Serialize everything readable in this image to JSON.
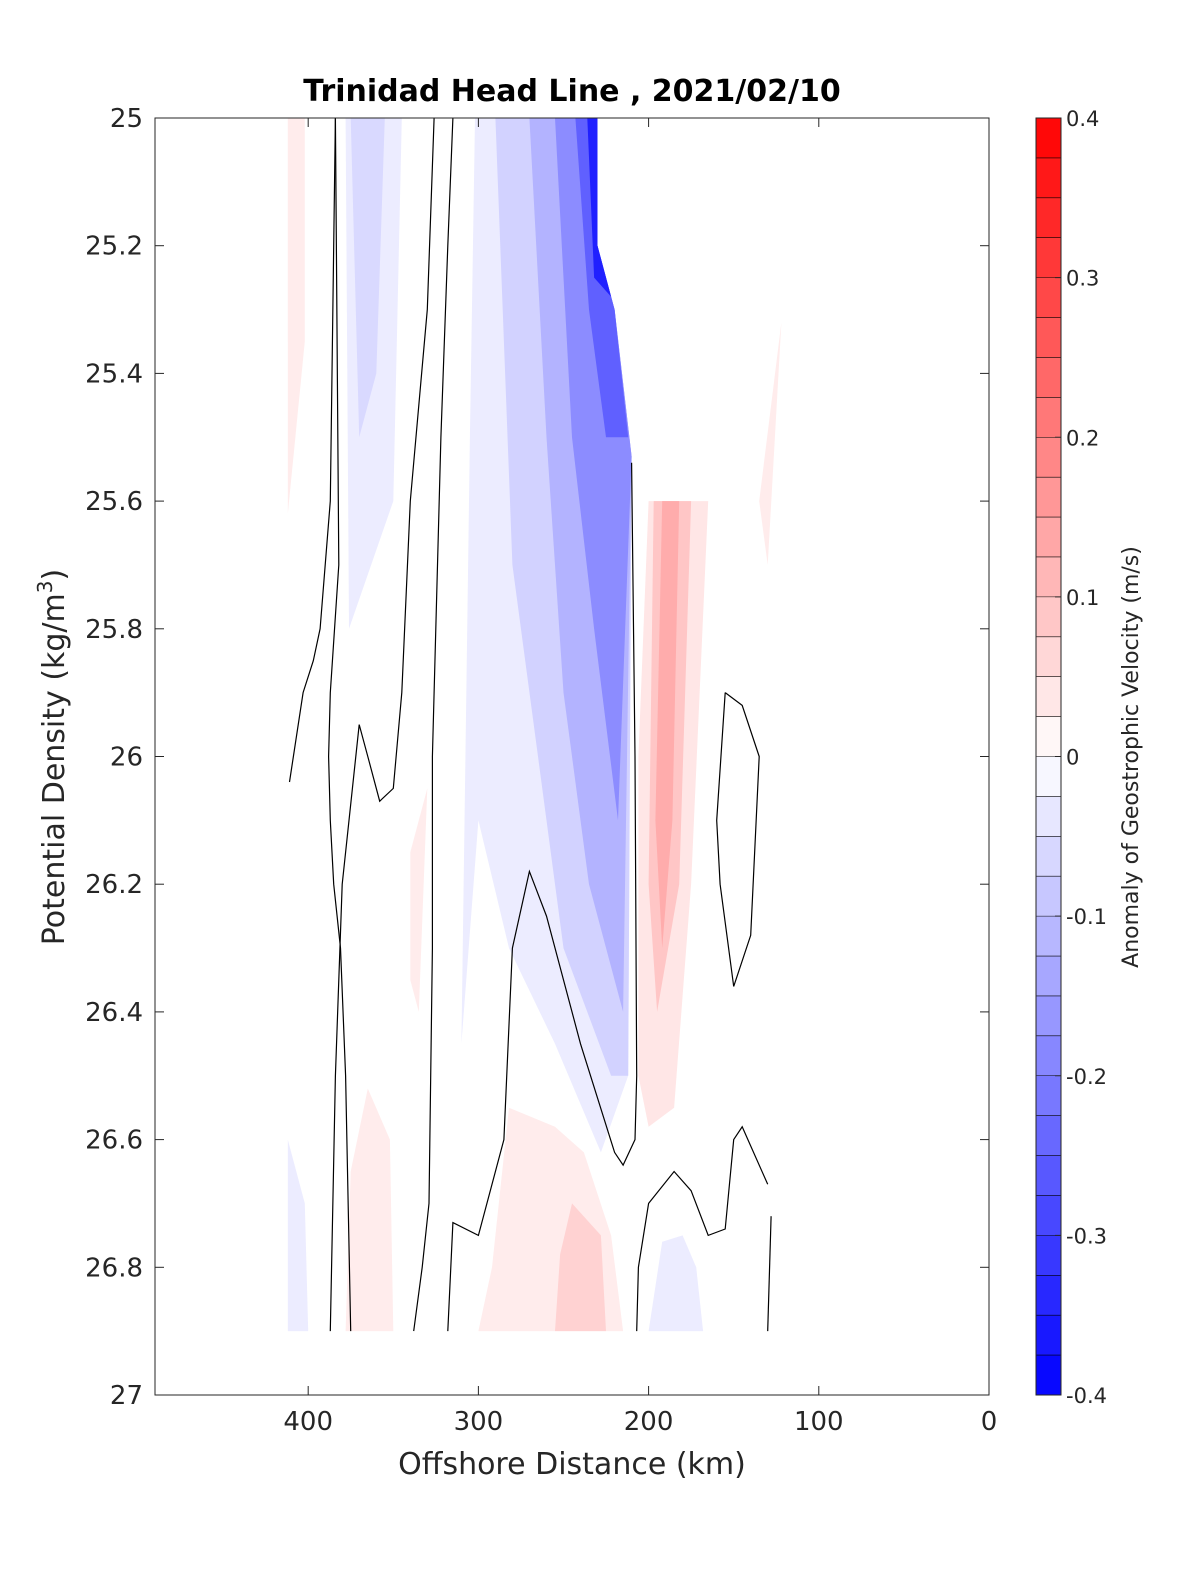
{
  "chart_data": {
    "type": "heatmap",
    "title": "Trinidad Head Line , 2021/02/10",
    "xlabel": "Offshore Distance (km)",
    "ylabel_main": "Potential Density (kg/m",
    "ylabel_sup": "3",
    "ylabel_close": ")",
    "colorbar_label": "Anomaly of Geostrophic Velocity (m/s)",
    "xlim": [
      490,
      0
    ],
    "ylim": [
      25,
      27
    ],
    "x_reversed": true,
    "y_reversed": true,
    "x_ticks": [
      400,
      300,
      200,
      100,
      0
    ],
    "y_ticks": [
      25,
      25.2,
      25.4,
      25.6,
      25.8,
      26,
      26.2,
      26.4,
      26.6,
      26.8,
      27
    ],
    "y_tick_labels": [
      "25",
      "25.2",
      "25.4",
      "25.6",
      "25.8",
      "26",
      "26.2",
      "26.4",
      "26.6",
      "26.8",
      "27"
    ],
    "colorbar": {
      "min": -0.4,
      "max": 0.4,
      "step": 0.025,
      "ticks": [
        0.4,
        0.3,
        0.2,
        0.1,
        0,
        -0.1,
        -0.2,
        -0.3,
        -0.4
      ],
      "tick_labels": [
        "0.4",
        "0.3",
        "0.2",
        "0.1",
        "0",
        "-0.1",
        "-0.2",
        "-0.3",
        "-0.4"
      ],
      "colormap": "blue-white-red",
      "negative_color": "#0000ff",
      "positive_color": "#ff0000"
    },
    "filled_regions": [
      {
        "name": "pos-offshore-top",
        "value": 0.03,
        "points": [
          [
            412,
            25
          ],
          [
            402,
            25
          ],
          [
            402,
            25.35
          ],
          [
            412,
            25.62
          ]
        ]
      },
      {
        "name": "neg-band-1",
        "value": -0.03,
        "points": [
          [
            378,
            25
          ],
          [
            345,
            25
          ],
          [
            350,
            25.6
          ],
          [
            376,
            25.8
          ]
        ]
      },
      {
        "name": "neg-band-1-core",
        "value": -0.06,
        "points": [
          [
            375,
            25
          ],
          [
            355,
            25
          ],
          [
            360,
            25.4
          ],
          [
            370,
            25.5
          ]
        ]
      },
      {
        "name": "neg-main-light",
        "value": -0.03,
        "points": [
          [
            302,
            25
          ],
          [
            230,
            25
          ],
          [
            230,
            25.2
          ],
          [
            220,
            25.3
          ],
          [
            210,
            25.53
          ],
          [
            212,
            26.5
          ],
          [
            228,
            26.62
          ],
          [
            255,
            26.45
          ],
          [
            282,
            26.3
          ],
          [
            300,
            26.1
          ],
          [
            310,
            26.45
          ],
          [
            305,
            25.5
          ]
        ]
      },
      {
        "name": "neg-main-2",
        "value": -0.07,
        "points": [
          [
            290,
            25
          ],
          [
            230,
            25
          ],
          [
            230,
            25.2
          ],
          [
            220,
            25.3
          ],
          [
            210,
            25.53
          ],
          [
            212,
            26.5
          ],
          [
            222,
            26.5
          ],
          [
            250,
            26.3
          ],
          [
            265,
            26.0
          ],
          [
            280,
            25.7
          ]
        ]
      },
      {
        "name": "neg-main-3",
        "value": -0.12,
        "points": [
          [
            270,
            25
          ],
          [
            230,
            25
          ],
          [
            230,
            25.2
          ],
          [
            220,
            25.3
          ],
          [
            210,
            25.53
          ],
          [
            215,
            26.4
          ],
          [
            235,
            26.2
          ],
          [
            250,
            25.9
          ],
          [
            260,
            25.5
          ]
        ]
      },
      {
        "name": "neg-main-4",
        "value": -0.18,
        "points": [
          [
            255,
            25
          ],
          [
            230,
            25
          ],
          [
            230,
            25.2
          ],
          [
            220,
            25.3
          ],
          [
            210,
            25.53
          ],
          [
            218,
            26.1
          ],
          [
            232,
            25.8
          ],
          [
            245,
            25.5
          ]
        ]
      },
      {
        "name": "neg-main-5",
        "value": -0.25,
        "points": [
          [
            243,
            25
          ],
          [
            230,
            25
          ],
          [
            230,
            25.2
          ],
          [
            220,
            25.3
          ],
          [
            212,
            25.5
          ],
          [
            225,
            25.5
          ],
          [
            235,
            25.3
          ]
        ]
      },
      {
        "name": "neg-main-6",
        "value": -0.35,
        "points": [
          [
            236,
            25
          ],
          [
            230,
            25
          ],
          [
            230,
            25.2
          ],
          [
            222,
            25.28
          ],
          [
            232,
            25.25
          ]
        ]
      },
      {
        "name": "pos-inshore-light",
        "value": 0.04,
        "points": [
          [
            200,
            25.6
          ],
          [
            165,
            25.6
          ],
          [
            175,
            26.2
          ],
          [
            185,
            26.55
          ],
          [
            200,
            26.58
          ],
          [
            206,
            26.5
          ],
          [
            206,
            26.0
          ]
        ]
      },
      {
        "name": "pos-inshore-mid",
        "value": 0.09,
        "points": [
          [
            197,
            25.6
          ],
          [
            175,
            25.6
          ],
          [
            182,
            26.2
          ],
          [
            195,
            26.4
          ],
          [
            200,
            26.2
          ]
        ]
      },
      {
        "name": "pos-inshore-core",
        "value": 0.13,
        "points": [
          [
            192,
            25.6
          ],
          [
            182,
            25.6
          ],
          [
            186,
            26.1
          ],
          [
            192,
            26.3
          ],
          [
            196,
            26.1
          ]
        ]
      },
      {
        "name": "pos-nearshore-top",
        "value": 0.03,
        "points": [
          [
            135,
            25.6
          ],
          [
            122,
            25.32
          ],
          [
            130,
            25.7
          ]
        ]
      },
      {
        "name": "pos-thin-mid",
        "value": 0.03,
        "points": [
          [
            340,
            26.15
          ],
          [
            330,
            26.05
          ],
          [
            335,
            26.4
          ],
          [
            340,
            26.35
          ]
        ]
      },
      {
        "name": "pos-deep-offshore",
        "value": 0.03,
        "points": [
          [
            378,
            26.9
          ],
          [
            350,
            26.9
          ],
          [
            352,
            26.6
          ],
          [
            365,
            26.52
          ],
          [
            375,
            26.65
          ]
        ]
      },
      {
        "name": "pos-deep-mid-light",
        "value": 0.03,
        "points": [
          [
            300,
            26.9
          ],
          [
            215,
            26.9
          ],
          [
            222,
            26.75
          ],
          [
            238,
            26.62
          ],
          [
            255,
            26.58
          ],
          [
            282,
            26.55
          ],
          [
            292,
            26.8
          ]
        ]
      },
      {
        "name": "pos-deep-mid-core",
        "value": 0.07,
        "points": [
          [
            255,
            26.9
          ],
          [
            225,
            26.9
          ],
          [
            228,
            26.75
          ],
          [
            245,
            26.7
          ],
          [
            252,
            26.78
          ]
        ]
      },
      {
        "name": "neg-deep-offshore",
        "value": -0.03,
        "points": [
          [
            412,
            26.9
          ],
          [
            400,
            26.9
          ],
          [
            402,
            26.7
          ],
          [
            412,
            26.6
          ]
        ]
      },
      {
        "name": "neg-deep-inshore",
        "value": -0.03,
        "points": [
          [
            200,
            26.9
          ],
          [
            168,
            26.9
          ],
          [
            172,
            26.8
          ],
          [
            180,
            26.75
          ],
          [
            192,
            26.76
          ]
        ]
      }
    ],
    "contour_lines": [
      {
        "name": "zero-contour-1",
        "points": [
          [
            384,
            25
          ],
          [
            387,
            25.6
          ],
          [
            390,
            25.7
          ],
          [
            393,
            25.8
          ],
          [
            397,
            25.85
          ],
          [
            403,
            25.9
          ],
          [
            411,
            26.04
          ]
        ]
      },
      {
        "name": "zero-contour-2",
        "points": [
          [
            384,
            25
          ],
          [
            382,
            25.7
          ],
          [
            387,
            25.9
          ],
          [
            388,
            26.0
          ],
          [
            387,
            26.1
          ],
          [
            385,
            26.2
          ],
          [
            381,
            26.3
          ],
          [
            378,
            26.5
          ],
          [
            375,
            26.9
          ]
        ]
      },
      {
        "name": "zero-contour-3",
        "points": [
          [
            326,
            25
          ],
          [
            330,
            25.3
          ],
          [
            340,
            25.6
          ],
          [
            345,
            25.9
          ],
          [
            350,
            26.05
          ],
          [
            358,
            26.07
          ],
          [
            365,
            26.0
          ],
          [
            370,
            25.95
          ],
          [
            374,
            26.05
          ],
          [
            380,
            26.2
          ],
          [
            384,
            26.5
          ],
          [
            387,
            26.9
          ]
        ]
      },
      {
        "name": "zero-contour-4",
        "points": [
          [
            315,
            25
          ],
          [
            318,
            25.2
          ],
          [
            322,
            25.5
          ],
          [
            325,
            25.8
          ],
          [
            327,
            26.0
          ],
          [
            327,
            26.3
          ],
          [
            328,
            26.5
          ],
          [
            329,
            26.7
          ],
          [
            333,
            26.8
          ],
          [
            338,
            26.9
          ]
        ]
      },
      {
        "name": "zero-contour-5",
        "points": [
          [
            210,
            25.54
          ],
          [
            208,
            26.0
          ],
          [
            207,
            26.5
          ],
          [
            208,
            26.6
          ],
          [
            215,
            26.64
          ],
          [
            220,
            26.62
          ],
          [
            240,
            26.45
          ],
          [
            260,
            26.25
          ],
          [
            270,
            26.18
          ],
          [
            280,
            26.3
          ],
          [
            285,
            26.6
          ],
          [
            300,
            26.75
          ],
          [
            315,
            26.73
          ],
          [
            318,
            26.9
          ]
        ]
      },
      {
        "name": "zero-contour-6",
        "points": [
          [
            207,
            26.9
          ],
          [
            206,
            26.8
          ],
          [
            200,
            26.7
          ],
          [
            185,
            26.65
          ],
          [
            175,
            26.68
          ],
          [
            165,
            26.75
          ],
          [
            155,
            26.74
          ],
          [
            150,
            26.6
          ],
          [
            145,
            26.58
          ],
          [
            130,
            26.67
          ]
        ]
      },
      {
        "name": "zero-contour-7",
        "points": [
          [
            128,
            26.72
          ],
          [
            130,
            26.9
          ]
        ]
      },
      {
        "name": "zero-contour-8",
        "points": [
          [
            155,
            25.9
          ],
          [
            145,
            25.92
          ],
          [
            135,
            26.0
          ],
          [
            140,
            26.28
          ],
          [
            150,
            26.36
          ],
          [
            158,
            26.2
          ],
          [
            160,
            26.1
          ],
          [
            155,
            25.9
          ]
        ]
      }
    ]
  }
}
